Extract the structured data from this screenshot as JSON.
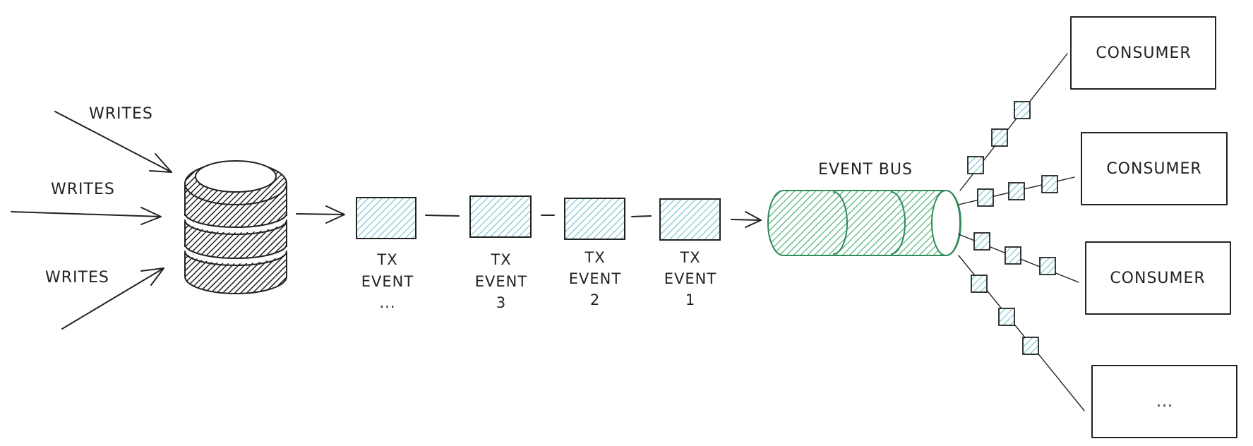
{
  "colors": {
    "ink": "#222222",
    "event_fill": "#6cc2cc",
    "bus_fill": "#4bb07a",
    "bus_stroke": "#2e8a57",
    "database_fill": "#222222"
  },
  "writes": [
    {
      "label": "WRITES"
    },
    {
      "label": "WRITES"
    },
    {
      "label": "WRITES"
    }
  ],
  "database": {
    "icon": "database-cylinder-icon"
  },
  "tx_events": [
    {
      "line1": "TX",
      "line2": "EVENT",
      "line3": "..."
    },
    {
      "line1": "TX",
      "line2": "EVENT",
      "line3": "3"
    },
    {
      "line1": "TX",
      "line2": "EVENT",
      "line3": "2"
    },
    {
      "line1": "TX",
      "line2": "EVENT",
      "line3": "1"
    }
  ],
  "event_bus": {
    "label": "EVENT BUS",
    "icon": "pipe-cylinder-icon"
  },
  "consumers": [
    {
      "label": "CONSUMER"
    },
    {
      "label": "CONSUMER"
    },
    {
      "label": "CONSUMER"
    },
    {
      "label": "..."
    }
  ]
}
